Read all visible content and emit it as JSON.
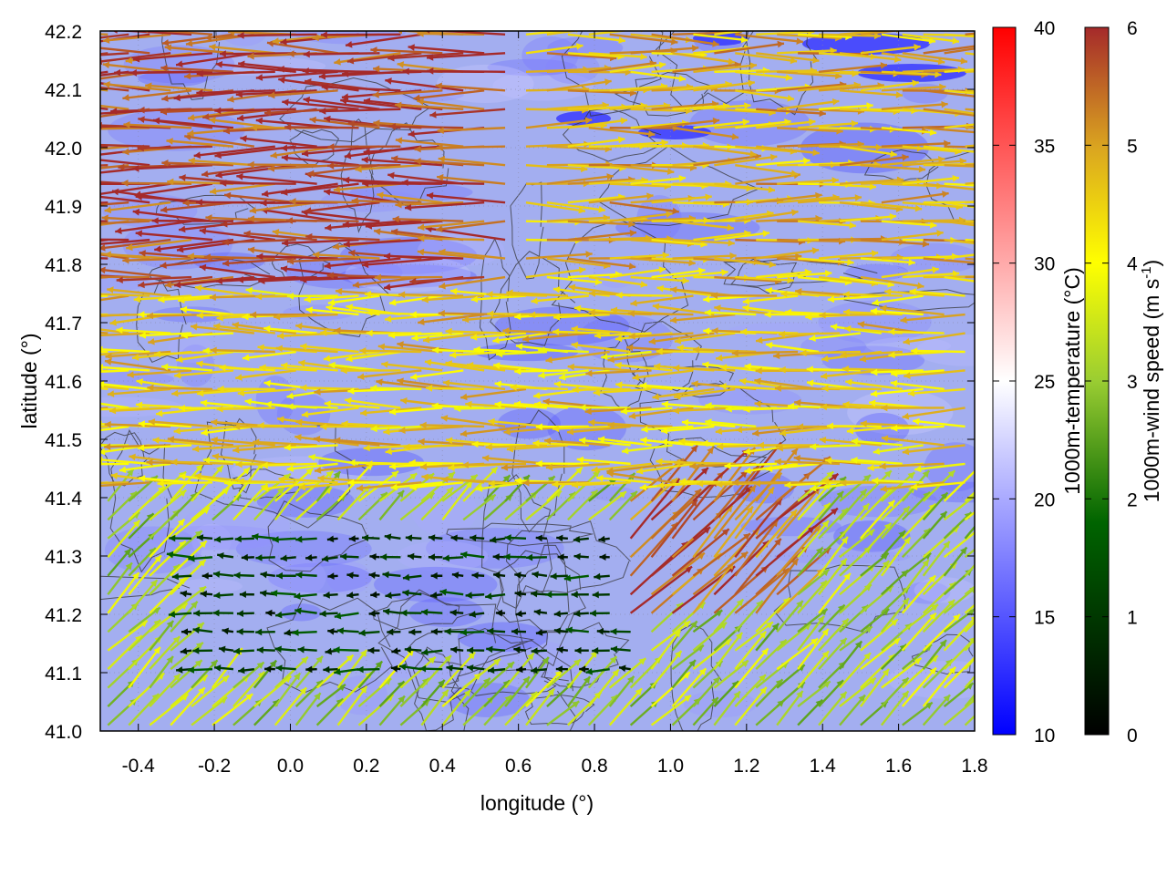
{
  "chart_data": {
    "type": "vector-field-over-heatmap",
    "xlabel": "longitude (°)",
    "ylabel": "latitude (°)",
    "xlim": [
      -0.5,
      1.8
    ],
    "ylim": [
      41.0,
      42.2
    ],
    "x_ticks": [
      "-0.4",
      "-0.2",
      "0.0",
      "0.2",
      "0.4",
      "0.6",
      "0.8",
      "1.0",
      "1.2",
      "1.4",
      "1.6",
      "1.8"
    ],
    "y_ticks": [
      "41.0",
      "41.1",
      "41.2",
      "41.3",
      "41.4",
      "41.5",
      "41.6",
      "41.7",
      "41.8",
      "41.9",
      "42.0",
      "42.1",
      "42.2"
    ],
    "grid": true,
    "temperature_colorbar": {
      "label": "1000m-temperature (°C)",
      "range": [
        10,
        40
      ],
      "ticks": [
        "10",
        "15",
        "20",
        "25",
        "30",
        "35",
        "40"
      ],
      "colors": [
        "#0000ff",
        "#ffffff",
        "#ff0000"
      ]
    },
    "wind_colorbar": {
      "label_main": "1000m-wind speed (m s",
      "label_sup": "-1",
      "label_end": ")",
      "range": [
        0,
        6
      ],
      "ticks": [
        "0",
        "1",
        "2",
        "3",
        "4",
        "5",
        "6"
      ],
      "colors": [
        "#000000",
        "#006400",
        "#9acd32",
        "#ffff00",
        "#daa520",
        "#a52a2a"
      ]
    },
    "temperature_field_range_c": [
      14,
      22
    ],
    "wind_regions": [
      {
        "area": "north-west",
        "direction": "westward",
        "speed_ms": 5.8
      },
      {
        "area": "north-east",
        "direction": "eastward",
        "speed_ms": 4.8
      },
      {
        "area": "centre",
        "direction": "westward",
        "speed_ms": 4.5
      },
      {
        "area": "south-west",
        "direction": "north-eastward",
        "speed_ms": 3.2
      },
      {
        "area": "south",
        "direction": "westward",
        "speed_ms": 1.0
      },
      {
        "area": "south-east",
        "direction": "north-eastward",
        "speed_ms": 5.5
      }
    ]
  }
}
